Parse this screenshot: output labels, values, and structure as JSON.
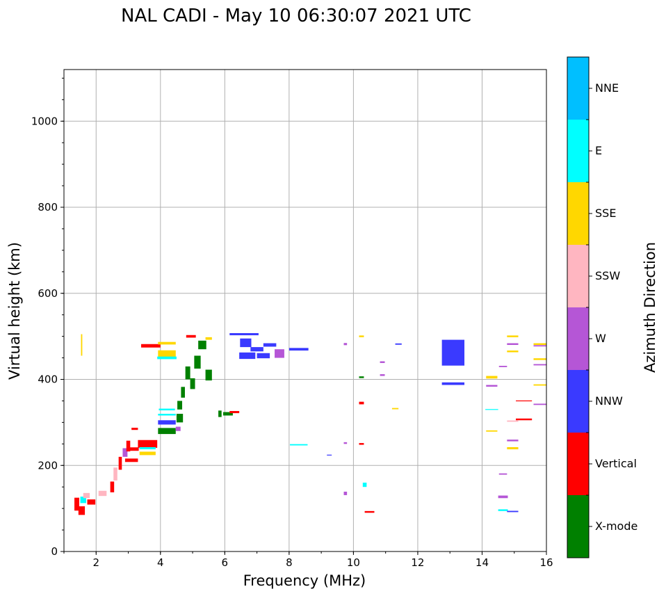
{
  "chart_data": {
    "type": "scatter",
    "subtype": "ionogram",
    "title": "NAL CADI - May 10 06:30:07 2021 UTC",
    "xlabel": "Frequency (MHz)",
    "ylabel": "Virtual height (km)",
    "xlim": [
      1,
      16
    ],
    "ylim": [
      0,
      1120
    ],
    "xticks": [
      "2",
      "4",
      "6",
      "8",
      "10",
      "12",
      "14",
      "16"
    ],
    "yticks": [
      "0",
      "200",
      "400",
      "600",
      "800",
      "1000"
    ],
    "grid": true,
    "colorbar": {
      "label": "Azimuth Direction",
      "categories": [
        {
          "name": "X-mode",
          "color": "#008000"
        },
        {
          "name": "Vertical",
          "color": "#ff0000"
        },
        {
          "name": "NNW",
          "color": "#3a3aff"
        },
        {
          "name": "W",
          "color": "#b556d6"
        },
        {
          "name": "SSW",
          "color": "#ffb6c1"
        },
        {
          "name": "SSE",
          "color": "#ffd700"
        },
        {
          "name": "E",
          "color": "#00ffff"
        },
        {
          "name": "NNE",
          "color": "#00bfff"
        }
      ]
    },
    "echoes": [
      {
        "f": 1.55,
        "h": 480,
        "df": 0.04,
        "dh": 50,
        "dir": "SSE"
      },
      {
        "f": 1.4,
        "h": 110,
        "df": 0.15,
        "dh": 30,
        "dir": "Vertical"
      },
      {
        "f": 1.55,
        "h": 95,
        "df": 0.2,
        "dh": 20,
        "dir": "Vertical"
      },
      {
        "f": 1.6,
        "h": 120,
        "df": 0.18,
        "dh": 15,
        "dir": "E"
      },
      {
        "f": 1.7,
        "h": 130,
        "df": 0.2,
        "dh": 12,
        "dir": "SSW"
      },
      {
        "f": 1.85,
        "h": 115,
        "df": 0.25,
        "dh": 12,
        "dir": "Vertical"
      },
      {
        "f": 2.2,
        "h": 135,
        "df": 0.25,
        "dh": 12,
        "dir": "SSW"
      },
      {
        "f": 2.5,
        "h": 150,
        "df": 0.12,
        "dh": 25,
        "dir": "Vertical"
      },
      {
        "f": 2.6,
        "h": 180,
        "df": 0.12,
        "dh": 30,
        "dir": "SSW"
      },
      {
        "f": 2.75,
        "h": 205,
        "df": 0.1,
        "dh": 30,
        "dir": "Vertical"
      },
      {
        "f": 2.9,
        "h": 230,
        "df": 0.15,
        "dh": 20,
        "dir": "W"
      },
      {
        "f": 3.0,
        "h": 245,
        "df": 0.12,
        "dh": 25,
        "dir": "Vertical"
      },
      {
        "f": 3.1,
        "h": 212,
        "df": 0.4,
        "dh": 8,
        "dir": "Vertical"
      },
      {
        "f": 3.15,
        "h": 238,
        "df": 0.35,
        "dh": 8,
        "dir": "Vertical"
      },
      {
        "f": 3.2,
        "h": 285,
        "df": 0.2,
        "dh": 5,
        "dir": "Vertical"
      },
      {
        "f": 3.6,
        "h": 250,
        "df": 0.6,
        "dh": 18,
        "dir": "Vertical"
      },
      {
        "f": 3.6,
        "h": 228,
        "df": 0.5,
        "dh": 8,
        "dir": "SSE"
      },
      {
        "f": 3.6,
        "h": 240,
        "df": 0.5,
        "dh": 5,
        "dir": "E"
      },
      {
        "f": 3.7,
        "h": 478,
        "df": 0.6,
        "dh": 8,
        "dir": "Vertical"
      },
      {
        "f": 4.2,
        "h": 484,
        "df": 0.55,
        "dh": 6,
        "dir": "SSE"
      },
      {
        "f": 4.2,
        "h": 460,
        "df": 0.55,
        "dh": 15,
        "dir": "SSE"
      },
      {
        "f": 4.2,
        "h": 450,
        "df": 0.6,
        "dh": 6,
        "dir": "E"
      },
      {
        "f": 4.2,
        "h": 330,
        "df": 0.5,
        "dh": 4,
        "dir": "E"
      },
      {
        "f": 4.2,
        "h": 318,
        "df": 0.55,
        "dh": 4,
        "dir": "E"
      },
      {
        "f": 4.2,
        "h": 300,
        "df": 0.55,
        "dh": 10,
        "dir": "NNW"
      },
      {
        "f": 4.2,
        "h": 280,
        "df": 0.55,
        "dh": 14,
        "dir": "X-mode"
      },
      {
        "f": 4.6,
        "h": 310,
        "df": 0.2,
        "dh": 20,
        "dir": "X-mode"
      },
      {
        "f": 4.55,
        "h": 285,
        "df": 0.15,
        "dh": 10,
        "dir": "W"
      },
      {
        "f": 4.6,
        "h": 340,
        "df": 0.15,
        "dh": 20,
        "dir": "X-mode"
      },
      {
        "f": 4.7,
        "h": 370,
        "df": 0.12,
        "dh": 25,
        "dir": "X-mode"
      },
      {
        "f": 4.85,
        "h": 415,
        "df": 0.15,
        "dh": 30,
        "dir": "X-mode"
      },
      {
        "f": 5.0,
        "h": 390,
        "df": 0.15,
        "dh": 25,
        "dir": "X-mode"
      },
      {
        "f": 5.15,
        "h": 440,
        "df": 0.2,
        "dh": 30,
        "dir": "X-mode"
      },
      {
        "f": 5.3,
        "h": 480,
        "df": 0.25,
        "dh": 20,
        "dir": "X-mode"
      },
      {
        "f": 5.5,
        "h": 410,
        "df": 0.2,
        "dh": 25,
        "dir": "X-mode"
      },
      {
        "f": 4.95,
        "h": 500,
        "df": 0.3,
        "dh": 6,
        "dir": "Vertical"
      },
      {
        "f": 5.5,
        "h": 495,
        "df": 0.2,
        "dh": 6,
        "dir": "SSE"
      },
      {
        "f": 5.85,
        "h": 320,
        "df": 0.1,
        "dh": 15,
        "dir": "X-mode"
      },
      {
        "f": 6.1,
        "h": 320,
        "df": 0.3,
        "dh": 8,
        "dir": "X-mode"
      },
      {
        "f": 6.3,
        "h": 324,
        "df": 0.3,
        "dh": 5,
        "dir": "Vertical"
      },
      {
        "f": 6.6,
        "h": 505,
        "df": 0.9,
        "dh": 5,
        "dir": "NNW"
      },
      {
        "f": 6.65,
        "h": 485,
        "df": 0.35,
        "dh": 20,
        "dir": "NNW"
      },
      {
        "f": 6.7,
        "h": 455,
        "df": 0.5,
        "dh": 15,
        "dir": "NNW"
      },
      {
        "f": 7.0,
        "h": 470,
        "df": 0.4,
        "dh": 10,
        "dir": "NNW"
      },
      {
        "f": 7.2,
        "h": 455,
        "df": 0.4,
        "dh": 12,
        "dir": "NNW"
      },
      {
        "f": 7.4,
        "h": 480,
        "df": 0.4,
        "dh": 8,
        "dir": "NNW"
      },
      {
        "f": 7.7,
        "h": 460,
        "df": 0.3,
        "dh": 20,
        "dir": "W"
      },
      {
        "f": 8.3,
        "h": 470,
        "df": 0.6,
        "dh": 6,
        "dir": "NNW"
      },
      {
        "f": 8.3,
        "h": 248,
        "df": 0.55,
        "dh": 3,
        "dir": "E"
      },
      {
        "f": 9.25,
        "h": 224,
        "df": 0.15,
        "dh": 2,
        "dir": "NNW"
      },
      {
        "f": 9.75,
        "h": 482,
        "df": 0.1,
        "dh": 5,
        "dir": "W"
      },
      {
        "f": 9.75,
        "h": 252,
        "df": 0.1,
        "dh": 4,
        "dir": "W"
      },
      {
        "f": 9.75,
        "h": 135,
        "df": 0.1,
        "dh": 8,
        "dir": "W"
      },
      {
        "f": 10.25,
        "h": 500,
        "df": 0.15,
        "dh": 4,
        "dir": "SSE"
      },
      {
        "f": 10.25,
        "h": 405,
        "df": 0.15,
        "dh": 4,
        "dir": "X-mode"
      },
      {
        "f": 10.25,
        "h": 345,
        "df": 0.15,
        "dh": 6,
        "dir": "Vertical"
      },
      {
        "f": 10.25,
        "h": 250,
        "df": 0.15,
        "dh": 4,
        "dir": "Vertical"
      },
      {
        "f": 10.35,
        "h": 155,
        "df": 0.12,
        "dh": 10,
        "dir": "E"
      },
      {
        "f": 10.5,
        "h": 92,
        "df": 0.3,
        "dh": 4,
        "dir": "Vertical"
      },
      {
        "f": 10.9,
        "h": 440,
        "df": 0.15,
        "dh": 4,
        "dir": "W"
      },
      {
        "f": 10.9,
        "h": 410,
        "df": 0.15,
        "dh": 4,
        "dir": "W"
      },
      {
        "f": 11.3,
        "h": 332,
        "df": 0.2,
        "dh": 3,
        "dir": "SSE"
      },
      {
        "f": 11.4,
        "h": 482,
        "df": 0.2,
        "dh": 3,
        "dir": "NNW"
      },
      {
        "f": 13.1,
        "h": 462,
        "df": 0.7,
        "dh": 60,
        "dir": "NNW"
      },
      {
        "f": 13.1,
        "h": 390,
        "df": 0.7,
        "dh": 6,
        "dir": "NNW"
      },
      {
        "f": 14.3,
        "h": 405,
        "df": 0.35,
        "dh": 6,
        "dir": "SSE"
      },
      {
        "f": 14.3,
        "h": 385,
        "df": 0.35,
        "dh": 4,
        "dir": "W"
      },
      {
        "f": 14.3,
        "h": 330,
        "df": 0.4,
        "dh": 2,
        "dir": "E"
      },
      {
        "f": 14.3,
        "h": 280,
        "df": 0.35,
        "dh": 3,
        "dir": "SSE"
      },
      {
        "f": 14.65,
        "h": 430,
        "df": 0.25,
        "dh": 3,
        "dir": "W"
      },
      {
        "f": 14.65,
        "h": 180,
        "df": 0.25,
        "dh": 3,
        "dir": "W"
      },
      {
        "f": 14.65,
        "h": 127,
        "df": 0.3,
        "dh": 6,
        "dir": "W"
      },
      {
        "f": 14.65,
        "h": 96,
        "df": 0.3,
        "dh": 4,
        "dir": "E"
      },
      {
        "f": 14.95,
        "h": 500,
        "df": 0.35,
        "dh": 4,
        "dir": "SSE"
      },
      {
        "f": 14.95,
        "h": 482,
        "df": 0.35,
        "dh": 4,
        "dir": "W"
      },
      {
        "f": 14.95,
        "h": 465,
        "df": 0.35,
        "dh": 4,
        "dir": "SSE"
      },
      {
        "f": 14.95,
        "h": 303,
        "df": 0.35,
        "dh": 3,
        "dir": "SSW"
      },
      {
        "f": 14.95,
        "h": 258,
        "df": 0.35,
        "dh": 4,
        "dir": "W"
      },
      {
        "f": 14.95,
        "h": 240,
        "df": 0.35,
        "dh": 5,
        "dir": "SSE"
      },
      {
        "f": 14.95,
        "h": 93,
        "df": 0.35,
        "dh": 3,
        "dir": "NNW"
      },
      {
        "f": 15.3,
        "h": 307,
        "df": 0.5,
        "dh": 4,
        "dir": "Vertical"
      },
      {
        "f": 15.3,
        "h": 350,
        "df": 0.5,
        "dh": 2,
        "dir": "Vertical"
      },
      {
        "f": 15.8,
        "h": 482,
        "df": 0.4,
        "dh": 4,
        "dir": "SSE"
      },
      {
        "f": 15.8,
        "h": 478,
        "df": 0.4,
        "dh": 3,
        "dir": "W"
      },
      {
        "f": 15.8,
        "h": 447,
        "df": 0.4,
        "dh": 4,
        "dir": "SSE"
      },
      {
        "f": 15.8,
        "h": 434,
        "df": 0.4,
        "dh": 3,
        "dir": "W"
      },
      {
        "f": 15.8,
        "h": 387,
        "df": 0.4,
        "dh": 3,
        "dir": "SSE"
      },
      {
        "f": 15.8,
        "h": 342,
        "df": 0.4,
        "dh": 3,
        "dir": "W"
      }
    ]
  }
}
